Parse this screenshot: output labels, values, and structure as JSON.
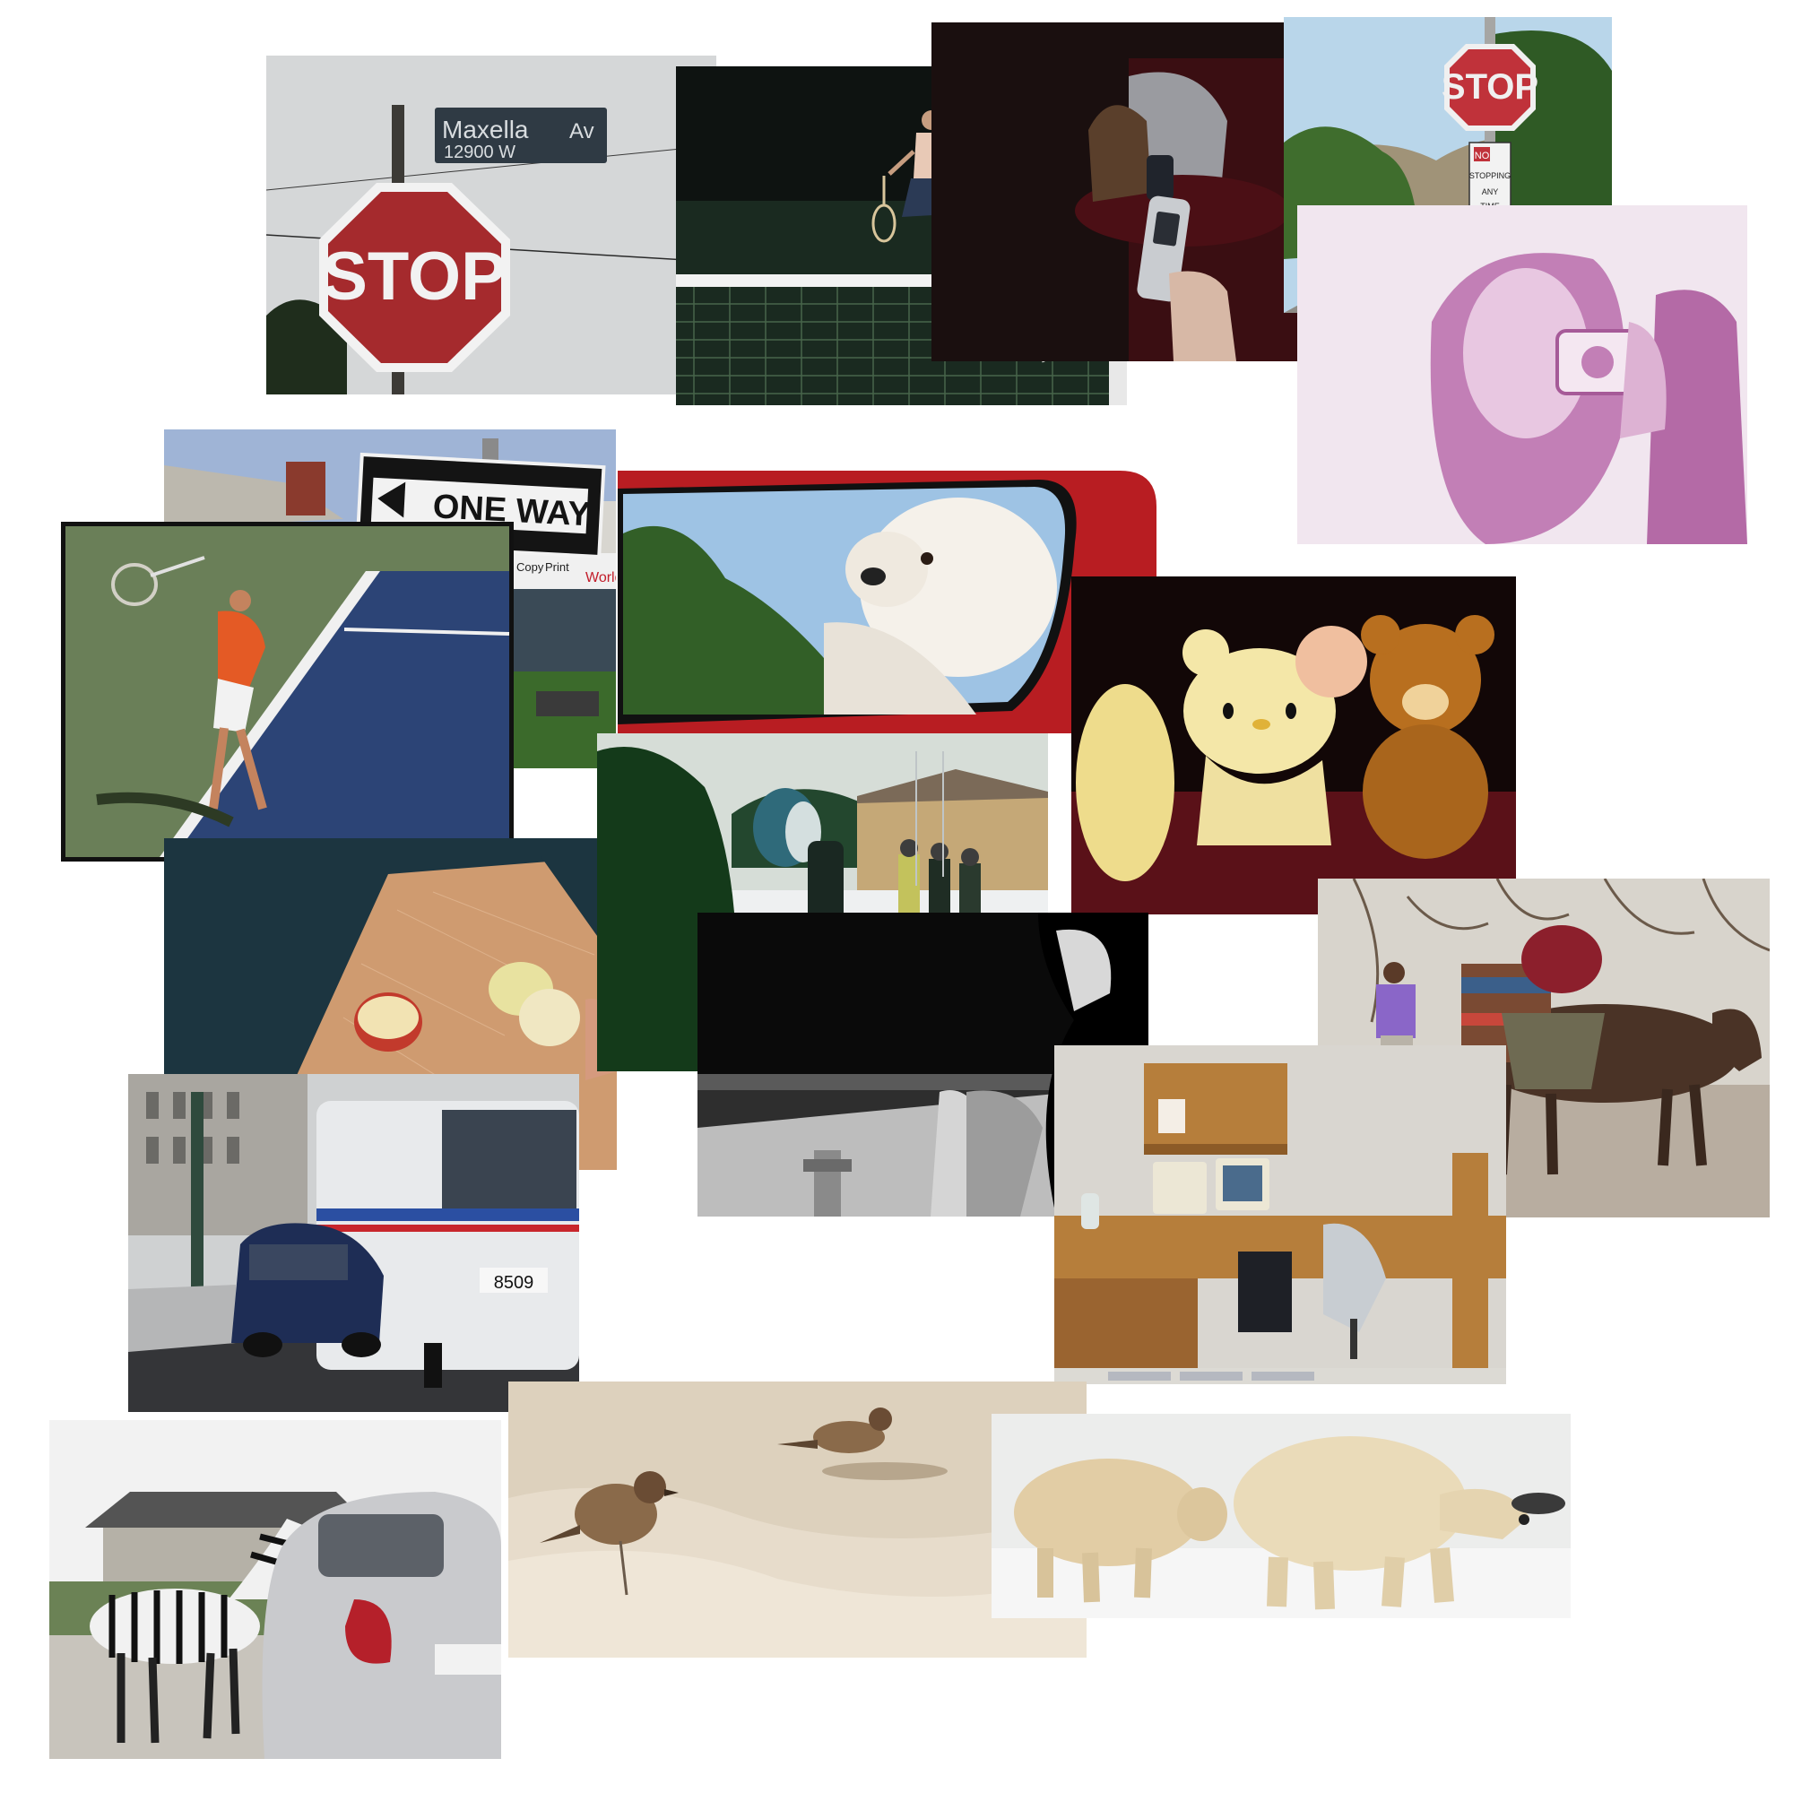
{
  "signs": {
    "street_name": "Maxella",
    "street_suffix": "Av",
    "street_block": "12900 W",
    "stop": "STOP",
    "one_way": "ONE WAY",
    "no_stopping_no": "NO",
    "no_stopping_line1": "STOPPING",
    "no_stopping_line2": "ANY",
    "no_stopping_line3": "TIME"
  },
  "storefront": {
    "copy": "Copy",
    "print": "Print",
    "world": "World"
  },
  "bus": {
    "number": "8509"
  }
}
